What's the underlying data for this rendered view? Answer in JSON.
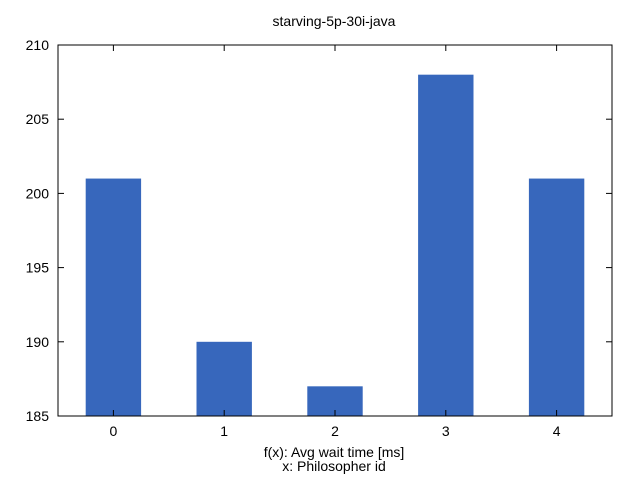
{
  "chart_data": {
    "type": "bar",
    "title": "starving-5p-30i-java",
    "categories": [
      "0",
      "1",
      "2",
      "3",
      "4"
    ],
    "values": [
      201,
      190,
      187,
      208,
      201
    ],
    "bar_color": "#3767bc",
    "ylim": [
      185,
      210
    ],
    "yticks": [
      185,
      190,
      195,
      200,
      205,
      210
    ],
    "xlabel_lines": [
      "f(x): Avg wait time [ms]",
      "x: Philosopher id"
    ],
    "grid": false,
    "legend": "none"
  }
}
